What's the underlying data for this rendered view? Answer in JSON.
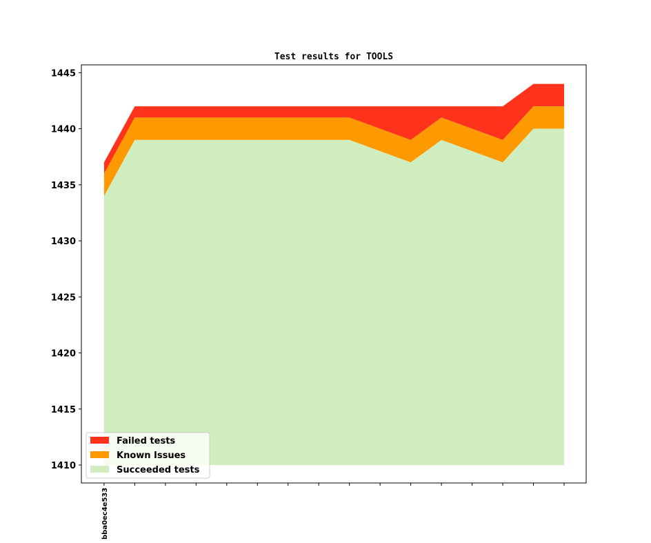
{
  "chart_data": {
    "type": "area",
    "stacked": true,
    "title": "Test results for TOOLS",
    "xlabel": "",
    "ylabel": "",
    "x": [
      0,
      1,
      2,
      3,
      4,
      5,
      6,
      7,
      8,
      9,
      10,
      11,
      12,
      13,
      14,
      15
    ],
    "x_tick_labels": [
      "bba0ec4e533",
      "",
      "",
      "",
      "",
      "",
      "",
      "",
      "",
      "",
      "",
      "",
      "",
      "",
      "",
      ""
    ],
    "ylim": [
      1408.4,
      1445.7
    ],
    "y_ticks": [
      1410,
      1415,
      1420,
      1425,
      1430,
      1435,
      1440,
      1445
    ],
    "baseline": 1410,
    "grid": false,
    "legend_position": "bottom-left",
    "series": [
      {
        "name": "Failed tests",
        "color": "#ff331c",
        "top": [
          1437,
          1442,
          1442,
          1442,
          1442,
          1442,
          1442,
          1442,
          1442,
          1442,
          1442,
          1442,
          1442,
          1442,
          1444,
          1444
        ]
      },
      {
        "name": "Known Issues",
        "color": "#ff9900",
        "top": [
          1436,
          1441,
          1441,
          1441,
          1441,
          1441,
          1441,
          1441,
          1441,
          1440,
          1439,
          1441,
          1440,
          1439,
          1442,
          1442
        ]
      },
      {
        "name": "Succeeded tests",
        "color": "#cfedbe",
        "top": [
          1434,
          1439,
          1439,
          1439,
          1439,
          1439,
          1439,
          1439,
          1439,
          1438,
          1437,
          1439,
          1438,
          1437,
          1440,
          1440
        ]
      }
    ]
  }
}
